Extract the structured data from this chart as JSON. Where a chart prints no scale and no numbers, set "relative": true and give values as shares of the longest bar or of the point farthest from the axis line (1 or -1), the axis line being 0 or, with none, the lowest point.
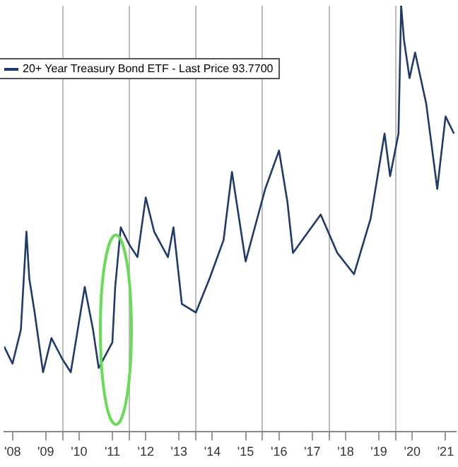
{
  "chart_data": {
    "type": "line",
    "relative": true,
    "x": [
      "2008-04",
      "2008-07",
      "2008-10",
      "2008-12",
      "2009-01",
      "2009-03",
      "2009-06",
      "2009-09",
      "2010-01",
      "2010-04",
      "2010-09",
      "2010-12",
      "2011-02",
      "2011-07",
      "2011-08",
      "2011-10",
      "2012-01",
      "2012-04",
      "2012-07",
      "2012-10",
      "2013-03",
      "2013-05",
      "2013-08",
      "2014-01",
      "2014-06",
      "2014-11",
      "2015-02",
      "2015-07",
      "2016-02",
      "2016-07",
      "2016-10",
      "2016-12",
      "2017-10",
      "2018-04",
      "2018-10",
      "2019-04",
      "2019-09",
      "2019-11",
      "2020-02",
      "2020-03",
      "2020-04",
      "2020-06",
      "2020-08",
      "2020-12",
      "2021-04",
      "2021-07",
      "2021-10"
    ],
    "series": [
      {
        "name": "20+ Year Treasury Bond ETF - Last Price 93.7700",
        "color": "#1f3a6b",
        "values": [
          0.2,
          0.16,
          0.24,
          0.47,
          0.36,
          0.28,
          0.14,
          0.22,
          0.17,
          0.14,
          0.34,
          0.24,
          0.15,
          0.21,
          0.34,
          0.48,
          0.44,
          0.41,
          0.55,
          0.47,
          0.41,
          0.48,
          0.3,
          0.28,
          0.36,
          0.45,
          0.61,
          0.4,
          0.57,
          0.66,
          0.54,
          0.42,
          0.51,
          0.42,
          0.37,
          0.5,
          0.7,
          0.6,
          0.7,
          1.0,
          0.92,
          0.83,
          0.89,
          0.77,
          0.57,
          0.74,
          0.7
        ]
      }
    ],
    "xlim": [
      "2008-04",
      "2021-10-20"
    ],
    "xticks": [
      {
        "value": "2008-07",
        "label": "'08"
      },
      {
        "value": "2009-07",
        "label": "'09"
      },
      {
        "value": "2010-01",
        "label": null
      },
      {
        "value": "2010-07",
        "label": "'10"
      },
      {
        "value": "2011-07",
        "label": "'11"
      },
      {
        "value": "2012-01",
        "label": null
      },
      {
        "value": "2012-07",
        "label": "'12"
      },
      {
        "value": "2013-07",
        "label": "'13"
      },
      {
        "value": "2014-01",
        "label": null
      },
      {
        "value": "2014-07",
        "label": "'14"
      },
      {
        "value": "2015-07",
        "label": "'15"
      },
      {
        "value": "2016-01",
        "label": null
      },
      {
        "value": "2016-07",
        "label": "'16"
      },
      {
        "value": "2017-07",
        "label": "'17"
      },
      {
        "value": "2018-01",
        "label": null
      },
      {
        "value": "2018-07",
        "label": "'18"
      },
      {
        "value": "2019-07",
        "label": "'19"
      },
      {
        "value": "2020-01",
        "label": null
      },
      {
        "value": "2020-07",
        "label": "'20"
      },
      {
        "value": "2021-07",
        "label": "'21"
      }
    ],
    "grid": "x",
    "legend": "top left",
    "marker": "none",
    "line_style": "solid"
  }
}
